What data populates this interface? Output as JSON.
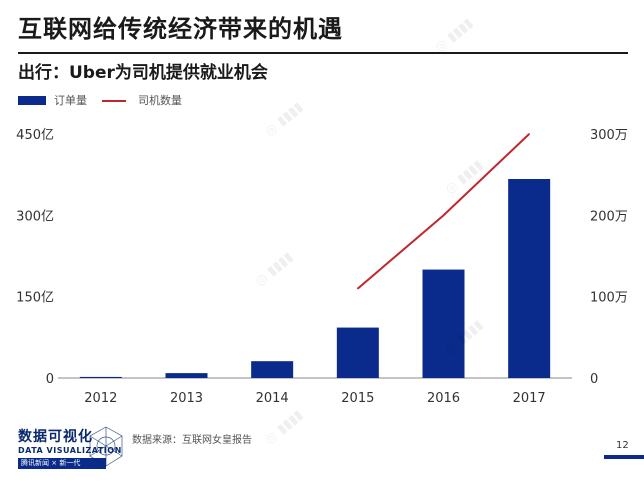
{
  "header": {
    "title": "互联网给传统经济带来的机遇",
    "subtitle": "出行：Uber为司机提供就业机会"
  },
  "legend": {
    "bar_label": "订单量",
    "line_label": "司机数量"
  },
  "source": "数据来源：互联网女皇报告",
  "page_number": "12",
  "logo": {
    "line1": "数据可视化",
    "line2": "DATA VISUALIZATION",
    "line3": "腾讯新闻 × 新一代"
  },
  "colors": {
    "bar": "#0a2a8c",
    "line": "#c0272d",
    "axis": "#888888"
  },
  "chart_data": {
    "type": "bar",
    "title": "出行：Uber为司机提供就业机会",
    "categories": [
      "2012",
      "2013",
      "2014",
      "2015",
      "2016",
      "2017"
    ],
    "series": [
      {
        "name": "订单量",
        "type": "bar",
        "axis": "left",
        "values": [
          2,
          9,
          31,
          93,
          200,
          367
        ]
      },
      {
        "name": "司机数量",
        "type": "line",
        "axis": "right",
        "values": [
          null,
          null,
          null,
          110,
          200,
          300
        ]
      }
    ],
    "y_left": {
      "ticks": [
        0,
        150,
        300,
        450
      ],
      "tick_labels": [
        "0",
        "150亿",
        "300亿",
        "450亿"
      ],
      "range": [
        0,
        450
      ]
    },
    "y_right": {
      "ticks": [
        0,
        100,
        200,
        300
      ],
      "tick_labels": [
        "0",
        "100万",
        "200万",
        "300万"
      ],
      "range": [
        0,
        300
      ]
    },
    "grid": false,
    "legend_position": "top-left"
  }
}
